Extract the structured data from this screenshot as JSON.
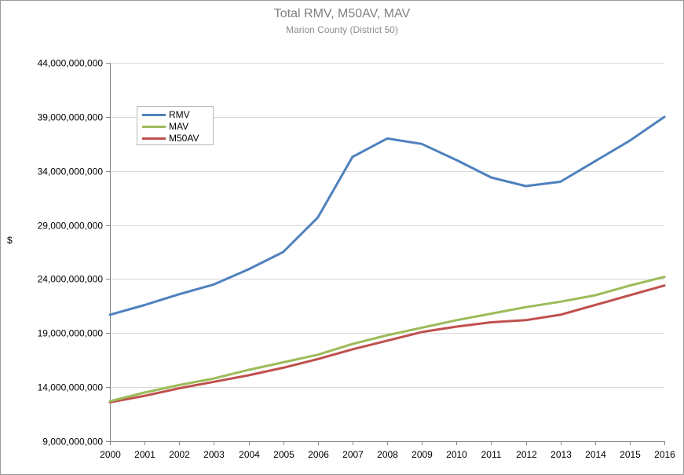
{
  "chart_data": {
    "type": "line",
    "title": "Total RMV, M50AV, MAV",
    "subtitle": "Marion County (District 50)",
    "xlabel": "",
    "ylabel": "$",
    "x": [
      2000,
      2001,
      2002,
      2003,
      2004,
      2005,
      2006,
      2007,
      2008,
      2009,
      2010,
      2011,
      2012,
      2013,
      2014,
      2015,
      2016
    ],
    "ylim": [
      9000000000,
      44000000000
    ],
    "yticks": [
      9000000000,
      14000000000,
      19000000000,
      24000000000,
      29000000000,
      34000000000,
      39000000000,
      44000000000
    ],
    "ytick_labels": [
      "9,000,000,000",
      "14,000,000,000",
      "19,000,000,000",
      "24,000,000,000",
      "29,000,000,000",
      "34,000,000,000",
      "39,000,000,000",
      "44,000,000,000"
    ],
    "grid": "horizontal",
    "legend_position": "top-left",
    "series": [
      {
        "name": "RMV",
        "color": "#4f81bd",
        "values": [
          20700000000,
          21600000000,
          22600000000,
          23500000000,
          24900000000,
          26500000000,
          29700000000,
          35300000000,
          37000000000,
          36500000000,
          35000000000,
          33400000000,
          32600000000,
          33000000000,
          34900000000,
          36800000000,
          39000000000
        ]
      },
      {
        "name": "MAV",
        "color": "#9bbb59",
        "values": [
          12700000000,
          13500000000,
          14200000000,
          14800000000,
          15600000000,
          16300000000,
          17000000000,
          18000000000,
          18800000000,
          19500000000,
          20200000000,
          20800000000,
          21400000000,
          21900000000,
          22500000000,
          23400000000,
          24200000000
        ]
      },
      {
        "name": "M50AV",
        "color": "#c0504d",
        "values": [
          12600000000,
          13200000000,
          13900000000,
          14500000000,
          15100000000,
          15800000000,
          16600000000,
          17500000000,
          18300000000,
          19100000000,
          19600000000,
          20000000000,
          20200000000,
          20700000000,
          21600000000,
          22500000000,
          23400000000
        ]
      }
    ]
  }
}
